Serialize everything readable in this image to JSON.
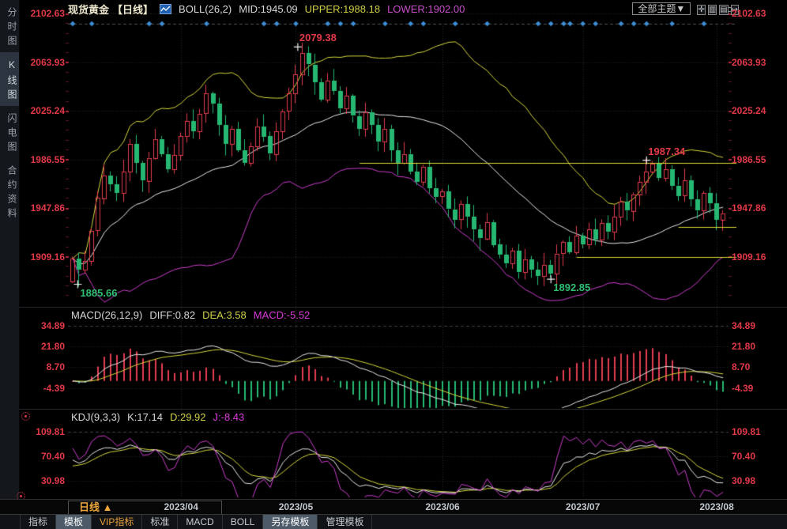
{
  "header": {
    "symbol": "现货黄金",
    "period": "【日线】",
    "indicator_label": "BOLL(26,2)",
    "mid_label": "MID:1945.09",
    "upper_label": "UPPER:1988.18",
    "lower_label": "LOWER:1902.00",
    "theme_button": "全部主题▼",
    "icons": [
      {
        "name": "crosshair-icon",
        "glyph": "✛"
      },
      {
        "name": "grid-scale-icon",
        "glyph": "▥"
      },
      {
        "name": "pane-layout-icon",
        "glyph": "▤"
      },
      {
        "name": "exit-icon",
        "glyph": "↦"
      }
    ]
  },
  "sidebar": {
    "tabs": [
      {
        "label": "分时图",
        "active": false
      },
      {
        "label": "K线图",
        "active": true
      },
      {
        "label": "闪电图",
        "active": false
      },
      {
        "label": "合约资料",
        "active": false
      }
    ]
  },
  "main_axis": {
    "labels": [
      "2102.63",
      "2063.93",
      "2025.24",
      "1986.55",
      "1947.86",
      "1909.16"
    ]
  },
  "macd": {
    "title": "MACD(26,12,9)",
    "diff": "DIFF:0.82",
    "dea": "DEA:3.58",
    "value": "MACD:-5.52",
    "axis": [
      "34.89",
      "21.80",
      "8.70",
      "-4.39"
    ]
  },
  "kdj": {
    "title": "KDJ(9,3,3)",
    "k": "K:17.14",
    "d": "D:29.92",
    "j": "J:-8.43",
    "axis": [
      "109.81",
      "70.40",
      "30.98"
    ]
  },
  "xaxis": {
    "period_button": "日线 ▲",
    "dates": [
      "2023/04",
      "2023/05",
      "2023/06",
      "2023/07",
      "2023/08"
    ]
  },
  "toolbar": {
    "items": [
      {
        "label": "指标",
        "slug": "indicators",
        "active": false,
        "vip": false
      },
      {
        "label": "模板",
        "slug": "templates",
        "active": true,
        "vip": false
      },
      {
        "label": "VIP指标",
        "slug": "vip-indicators",
        "active": false,
        "vip": true
      },
      {
        "label": "标准",
        "slug": "standard",
        "active": false,
        "vip": false
      },
      {
        "label": "MACD",
        "slug": "macd",
        "active": false,
        "vip": false
      },
      {
        "label": "BOLL",
        "slug": "boll",
        "active": false,
        "vip": false
      },
      {
        "label": "另存模板",
        "slug": "save-template",
        "active": true,
        "vip": false
      },
      {
        "label": "管理模板",
        "slug": "manage-template",
        "active": false,
        "vip": false
      }
    ]
  },
  "annotations": [
    {
      "label": "2079.38",
      "day": 35.3,
      "price": 2076.0,
      "color": "#e23948",
      "dir": "above"
    },
    {
      "label": "1885.66",
      "day": 0.8,
      "price": 1887.5,
      "color": "#2fbf71",
      "dir": "below"
    },
    {
      "label": "1892.85",
      "day": 75,
      "price": 1891.5,
      "color": "#2fbf71",
      "dir": "below"
    },
    {
      "label": "1987.34",
      "day": 90,
      "price": 1986.0,
      "color": "#e23948",
      "dir": "above"
    }
  ],
  "chart_data": {
    "type": "candlestick",
    "title": "现货黄金 日线 (Spot Gold Daily)",
    "indicators": [
      "BOLL(26,2)",
      "MACD(26,12,9)",
      "KDJ(9,3,3)"
    ],
    "y_axis": [
      2102.63,
      2063.93,
      2025.24,
      1986.55,
      1947.86,
      1909.16
    ],
    "macd_axis": [
      34.89,
      21.8,
      8.7,
      -4.39
    ],
    "kdj_axis": [
      109.81,
      70.4,
      30.98
    ],
    "x_tick_labels": [
      "2023/04",
      "2023/05",
      "2023/06",
      "2023/07",
      "2023/08"
    ],
    "month_tick_days": [
      17,
      35,
      58,
      80,
      101
    ],
    "open0": 1890,
    "closes": [
      1908,
      1899,
      1906,
      1930,
      1956,
      1974,
      1967,
      1960,
      1977,
      1999,
      1984,
      1970,
      1988,
      2003,
      1991,
      1979,
      1990,
      2005,
      2017,
      2009,
      2023,
      2039,
      2031,
      2014,
      1999,
      2011,
      1994,
      1984,
      1997,
      2013,
      2005,
      1991,
      2009,
      2025,
      2039,
      2054,
      2071,
      2062,
      2048,
      2034,
      2049,
      2041,
      2027,
      2037,
      2021,
      2011,
      2024,
      2014,
      2001,
      2011,
      1994,
      1984,
      1991,
      1977,
      1969,
      1981,
      1964,
      1957,
      1961,
      1947,
      1939,
      1951,
      1941,
      1931,
      1924,
      1937,
      1919,
      1911,
      1904,
      1914,
      1897,
      1907,
      1899,
      1894,
      1903,
      1896,
      1912,
      1921,
      1913,
      1926,
      1919,
      1931,
      1923,
      1936,
      1929,
      1941,
      1953,
      1946,
      1959,
      1969,
      1977,
      1983,
      1972,
      1979,
      1966,
      1958,
      1970,
      1955,
      1946,
      1960,
      1952,
      1939,
      1944
    ],
    "overrides": {
      "1": {
        "low": 1885.66
      },
      "36": {
        "high": 2079.38
      },
      "75": {
        "low": 1892.85
      },
      "90": {
        "high": 1987.34
      }
    },
    "extremes": {
      "high": 2079.38,
      "low": 1885.66,
      "swing_low": 1892.85,
      "swing_high": 1987.34
    },
    "marker_days": [
      0,
      3,
      12,
      14,
      21,
      30,
      32,
      35,
      40,
      42,
      44,
      49,
      53,
      55,
      60,
      65,
      73,
      75,
      77,
      78,
      80,
      82,
      86,
      88,
      90,
      94,
      99
    ],
    "trendlines": [
      {
        "price": 1984.0,
        "from_day": 45
      },
      {
        "price": 1933.0,
        "from_day": 95
      },
      {
        "price": 1909.16,
        "from_day": 79
      }
    ],
    "colors": {
      "up": "#e23b4f",
      "down": "#26b873",
      "boll_upper": "#d6d63c",
      "boll_mid": "#e8e8e8",
      "boll_lower": "#cc3ecc",
      "diff_line": "#e8e8e8",
      "dea_line": "#d6d63c",
      "j_line": "#cc3ecc",
      "marker": "#3d8fd8",
      "axis_text": "#e23948",
      "trendline": "#d8d832"
    }
  }
}
